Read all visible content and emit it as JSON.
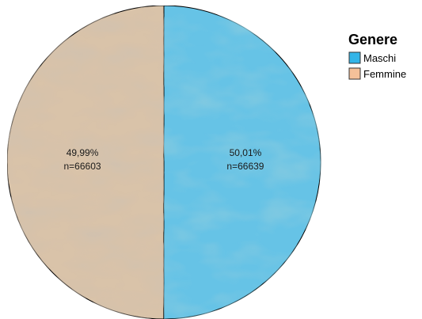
{
  "chart_data": {
    "type": "pie",
    "legend": {
      "title": "Genere",
      "position": "top-right"
    },
    "slices": [
      {
        "name": "Maschi",
        "percent_label": "50,01%",
        "n_label": "n=66639",
        "value": 66639,
        "color": "#66c3e6"
      },
      {
        "name": "Femmine",
        "percent_label": "49,99%",
        "n_label": "n=66603",
        "value": 66603,
        "color": "#d9c3a9"
      }
    ],
    "legend_swatch_colors": {
      "Maschi": "#33b5e8",
      "Femmine": "#f4c199"
    }
  }
}
